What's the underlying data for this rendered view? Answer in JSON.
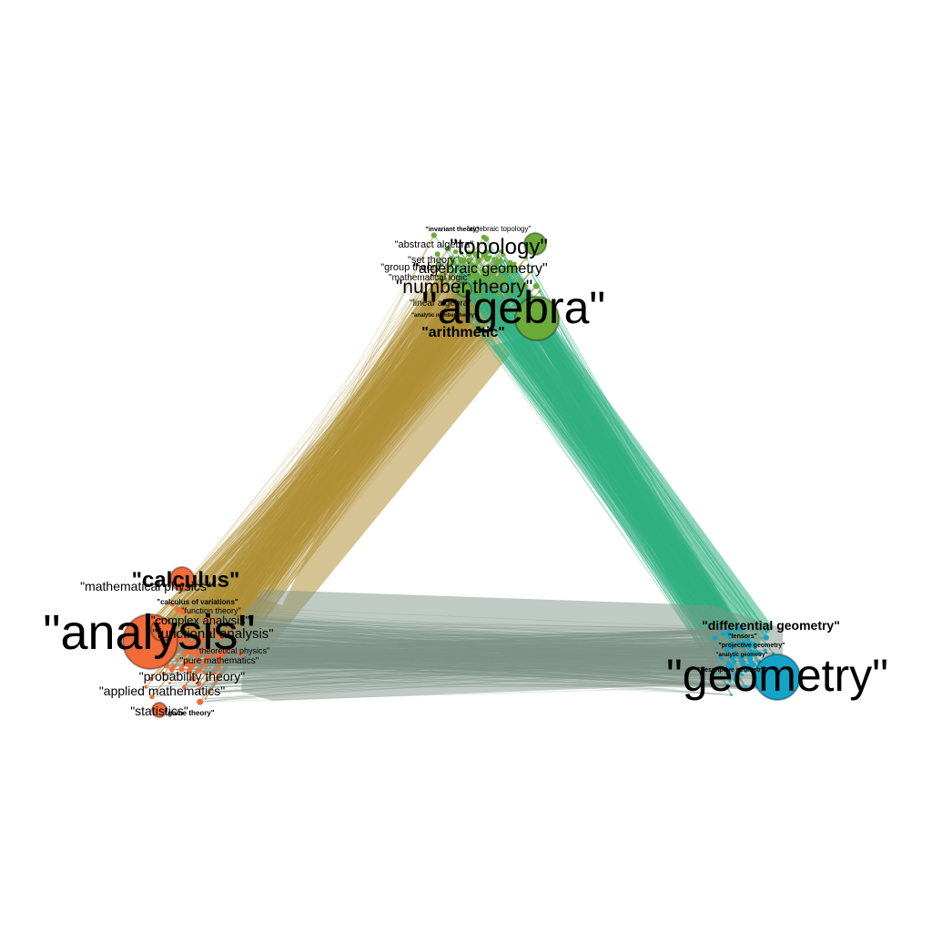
{
  "colors": {
    "analysis_community": "#f26b38",
    "algebra_community": "#6aab3a",
    "geometry_community": "#13a4c8",
    "edges_analysis_algebra": "#b2913a",
    "edges_algebra_geometry": "#33b385",
    "edges_analysis_geometry": "#809589",
    "background": "#ffffff"
  },
  "communities": {
    "algebra": {
      "hub": "\"algebra\"",
      "labels": [
        "\"topology\"",
        "\"algebraic geometry\"",
        "\"number theory\"",
        "\"abstract algebra\"",
        "\"set theory\"",
        "\"group theory\"",
        "\"mathematical logic\"",
        "\"linear algebra\"",
        "\"arithmetic\"",
        "\"invariant theory\"",
        "\"algebraic topology\"",
        "\"analytic number theory\""
      ]
    },
    "analysis": {
      "hub": "\"analysis\"",
      "labels": [
        "\"calculus\"",
        "\"mathematical physics\"",
        "\"calculus of variations\"",
        "\"complex analysis\"",
        "\"functional analysis\"",
        "\"function theory\"",
        "\"theoretical physics\"",
        "\"pure mathematics\"",
        "\"probability theory\"",
        "\"applied mathematics\"",
        "\"statistics\"",
        "\"game theory\""
      ]
    },
    "geometry": {
      "hub": "\"geometry\"",
      "labels": [
        "\"differential geometry\"",
        "\"tensors\"",
        "\"projective geometry\"",
        "\"analytic geometry\"",
        "\"descriptive geometry\""
      ]
    }
  }
}
